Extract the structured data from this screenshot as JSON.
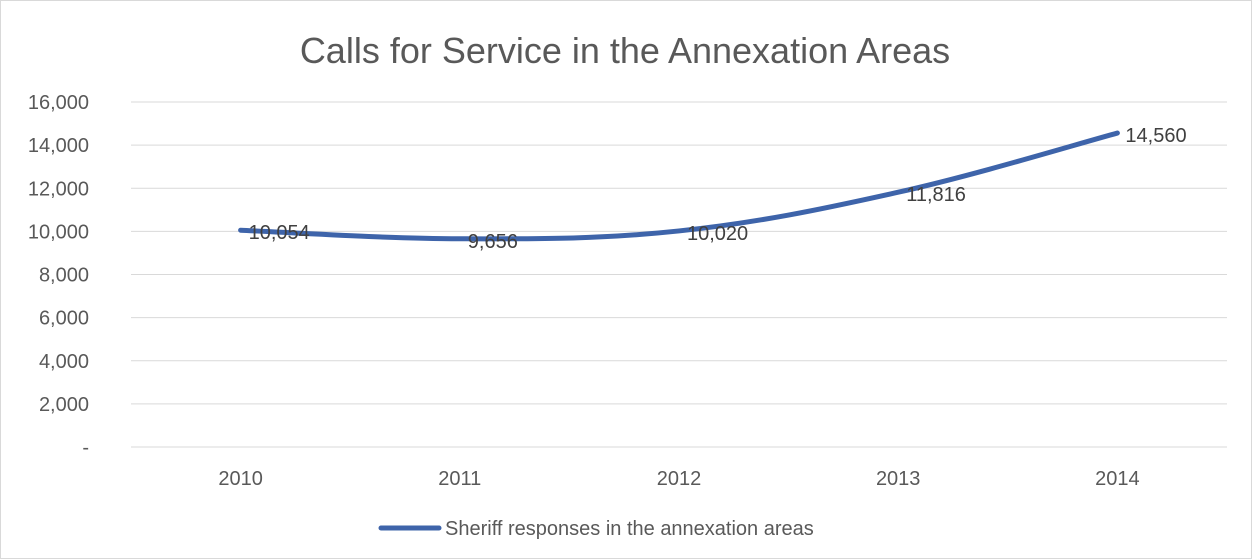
{
  "chart_data": {
    "type": "line",
    "title": "Calls for Service in the Annexation Areas",
    "xlabel": "",
    "ylabel": "",
    "categories": [
      "2010",
      "2011",
      "2012",
      "2013",
      "2014"
    ],
    "series": [
      {
        "name": "Sheriff responses in the annexation areas",
        "values": [
          10054,
          9656,
          10020,
          11816,
          14560
        ],
        "labels": [
          "10,054",
          "9,656",
          "10,020",
          "11,816",
          "14,560"
        ],
        "color": "#3E64AA"
      }
    ],
    "ylim": [
      0,
      16000
    ],
    "yticks": [
      0,
      2000,
      4000,
      6000,
      8000,
      10000,
      12000,
      14000,
      16000
    ],
    "ytick_labels": [
      "-",
      "2,000",
      "4,000",
      "6,000",
      "8,000",
      "10,000",
      "12,000",
      "14,000",
      "16,000"
    ],
    "grid": true,
    "legend_position": "bottom",
    "colors": {
      "gridline": "#d9d9d9",
      "text": "#595959",
      "series": "#3E64AA"
    }
  }
}
